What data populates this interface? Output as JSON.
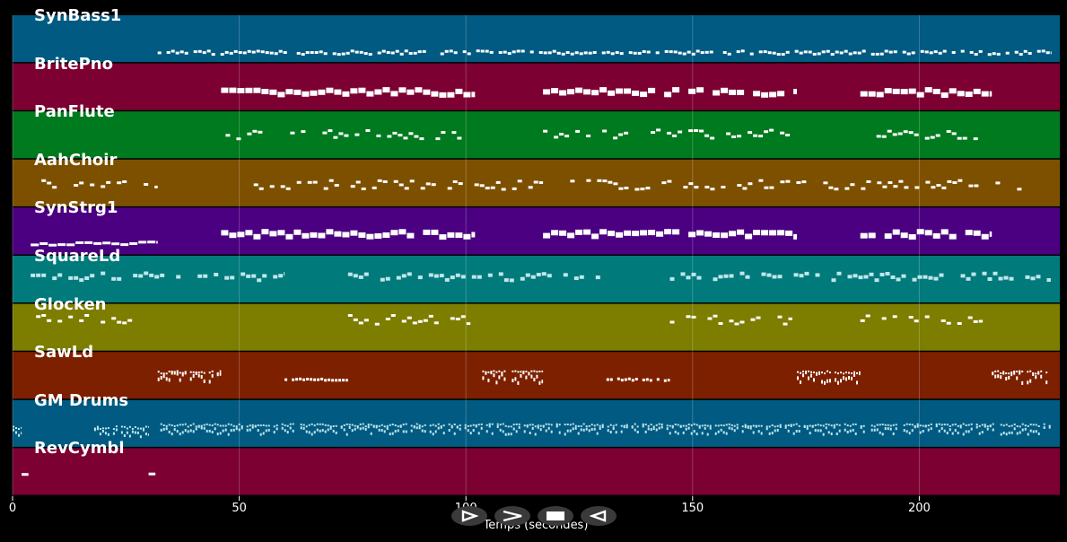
{
  "tracks": [
    {
      "name": "SynBass1",
      "color": "#005a82"
    },
    {
      "name": "BritePno",
      "color": "#7d0032"
    },
    {
      "name": "PanFlute",
      "color": "#007a1e"
    },
    {
      "name": "AahChoir",
      "color": "#7d5000"
    },
    {
      "name": "SynStrg1",
      "color": "#4b0082"
    },
    {
      "name": "SquareLd",
      "color": "#007a7a"
    },
    {
      "name": "Glocken",
      "color": "#7d7d00"
    },
    {
      "name": "SawLd",
      "color": "#7d2000"
    },
    {
      "name": "GM Drums",
      "color": "#005a82"
    },
    {
      "name": "RevCymbl",
      "color": "#7d0032"
    }
  ],
  "axis": {
    "xlabel": "Temps (secondes)",
    "xlim": [
      0,
      231
    ],
    "ticks": [
      0,
      50,
      100,
      150,
      200
    ],
    "tick_labels": [
      "0",
      "50",
      "100",
      "150",
      "200"
    ]
  },
  "note_segments": [
    [
      {
        "start": 32,
        "end": 229,
        "style": "dense-small",
        "y": 0.75
      }
    ],
    [
      {
        "start": 46,
        "end": 102,
        "style": "block",
        "y": 0.55
      },
      {
        "start": 117,
        "end": 173,
        "style": "block",
        "y": 0.55
      },
      {
        "start": 187,
        "end": 216,
        "style": "block",
        "y": 0.55
      }
    ],
    [
      {
        "start": 47,
        "end": 101,
        "style": "sparse",
        "y": 0.45
      },
      {
        "start": 117,
        "end": 172,
        "style": "sparse",
        "y": 0.45
      },
      {
        "start": 187,
        "end": 214,
        "style": "sparse",
        "y": 0.45
      }
    ],
    [
      {
        "start": 4,
        "end": 32,
        "style": "sparse",
        "y": 0.5
      },
      {
        "start": 52,
        "end": 117,
        "style": "sparse",
        "y": 0.5
      },
      {
        "start": 123,
        "end": 230,
        "style": "sparse",
        "y": 0.5
      }
    ],
    [
      {
        "start": 4,
        "end": 32,
        "style": "line",
        "y": 0.72
      },
      {
        "start": 46,
        "end": 102,
        "style": "block",
        "y": 0.5
      },
      {
        "start": 117,
        "end": 173,
        "style": "block",
        "y": 0.5
      },
      {
        "start": 187,
        "end": 216,
        "style": "block",
        "y": 0.5
      }
    ],
    [
      {
        "start": 4,
        "end": 60,
        "style": "ticks",
        "y": 0.4
      },
      {
        "start": 74,
        "end": 131,
        "style": "ticks",
        "y": 0.4
      },
      {
        "start": 145,
        "end": 229,
        "style": "ticks",
        "y": 0.4
      }
    ],
    [
      {
        "start": 4,
        "end": 30,
        "style": "sparse",
        "y": 0.3
      },
      {
        "start": 74,
        "end": 101,
        "style": "sparse",
        "y": 0.3
      },
      {
        "start": 145,
        "end": 172,
        "style": "sparse",
        "y": 0.3
      },
      {
        "start": 187,
        "end": 214,
        "style": "sparse",
        "y": 0.3
      }
    ],
    [
      {
        "start": 32,
        "end": 46,
        "style": "cluster",
        "y": 0.5
      },
      {
        "start": 60,
        "end": 74,
        "style": "small-line",
        "y": 0.55
      },
      {
        "start": 103,
        "end": 117,
        "style": "cluster",
        "y": 0.5
      },
      {
        "start": 131,
        "end": 145,
        "style": "small-line",
        "y": 0.55
      },
      {
        "start": 173,
        "end": 187,
        "style": "cluster",
        "y": 0.5
      },
      {
        "start": 216,
        "end": 229,
        "style": "cluster",
        "y": 0.5
      }
    ],
    [
      {
        "start": 0,
        "end": 2,
        "style": "drums",
        "y": 0.65
      },
      {
        "start": 18,
        "end": 30,
        "style": "drums",
        "y": 0.65
      },
      {
        "start": 32,
        "end": 229,
        "style": "drums",
        "y": 0.6
      }
    ],
    [
      {
        "start": 2,
        "end": 3.5,
        "style": "line",
        "y": 0.5
      },
      {
        "start": 30,
        "end": 31.5,
        "style": "line",
        "y": 0.5
      }
    ]
  ],
  "transport": [
    {
      "name": "play-icon"
    },
    {
      "name": "fast-forward-icon"
    },
    {
      "name": "stop-icon"
    },
    {
      "name": "rewind-icon"
    }
  ]
}
